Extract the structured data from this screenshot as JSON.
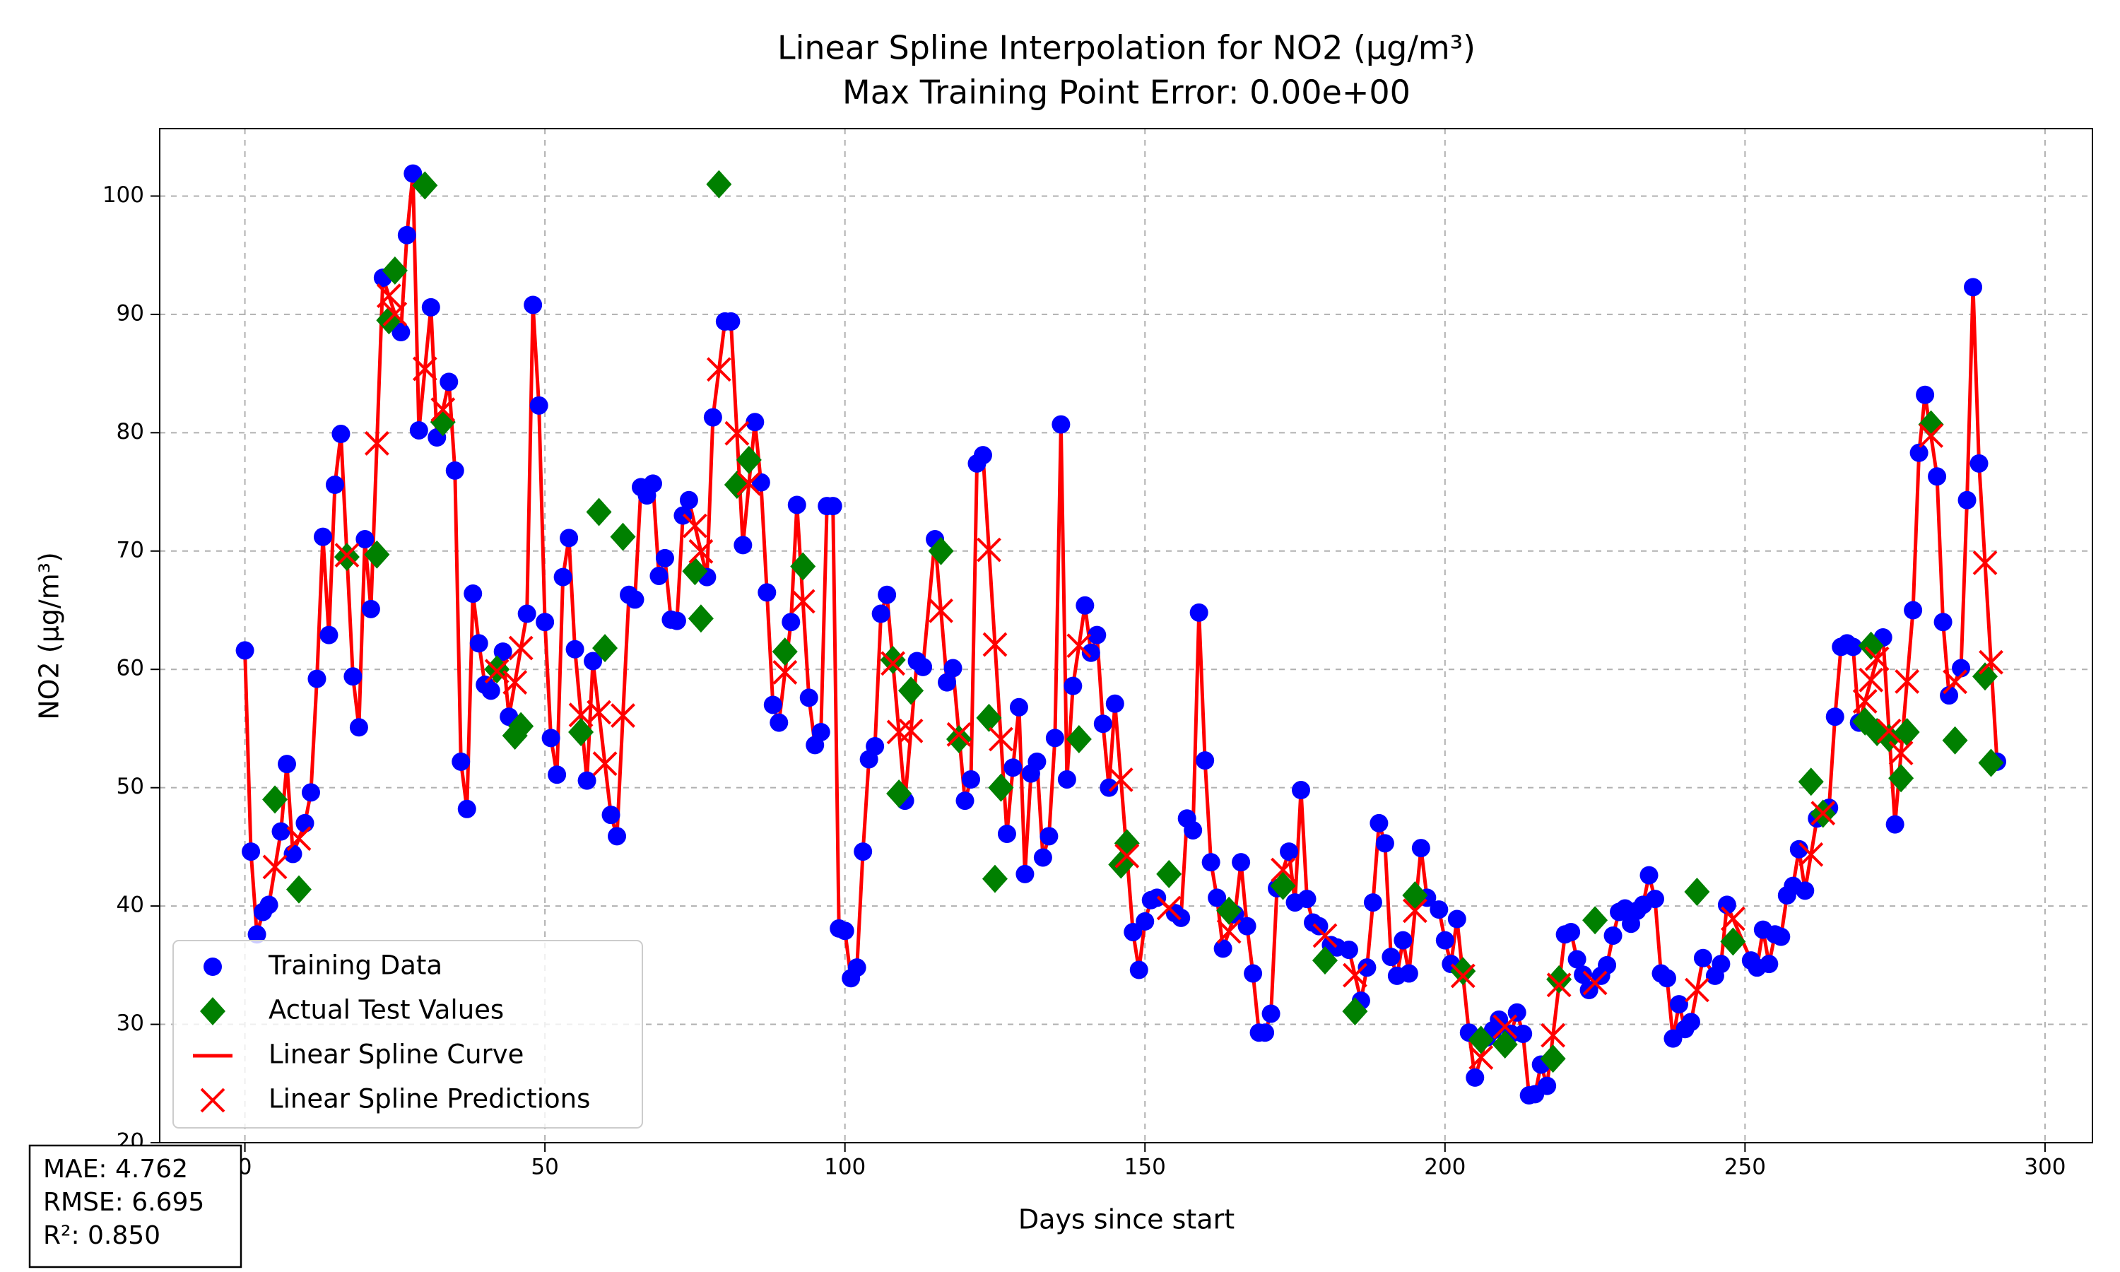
{
  "chart_data": {
    "type": "scatter",
    "title": "Linear Spline Interpolation for NO2 (µg/m³)",
    "subtitle": "Max Training Point Error: 0.00e+00",
    "x_label": "Days since start",
    "y_label": "NO2 (µg/m³)",
    "annotations": [
      "MAE: 4.762",
      "RMSE: 6.695",
      "R²: 0.850"
    ],
    "xlim": [
      -14.2,
      307.9
    ],
    "ylim": [
      20,
      105.7
    ],
    "xticks": [
      0,
      50,
      100,
      150,
      200,
      250,
      300
    ],
    "yticks": [
      20,
      30,
      40,
      50,
      60,
      70,
      80,
      90,
      100
    ],
    "grid": true,
    "legend": "lower left",
    "series": [
      {
        "name": "Training Data",
        "type": "scatter",
        "marker": "o",
        "color": "#0000ff",
        "x": [
          0,
          1,
          2,
          3,
          4,
          6,
          7,
          8,
          10,
          11,
          12,
          13,
          14,
          15,
          16,
          18,
          19,
          20,
          21,
          23,
          26,
          27,
          28,
          29,
          31,
          32,
          34,
          35,
          36,
          37,
          38,
          39,
          40,
          41,
          43,
          44,
          47,
          48,
          49,
          50,
          51,
          52,
          53,
          54,
          55,
          57,
          58,
          61,
          62,
          64,
          65,
          66,
          67,
          68,
          69,
          70,
          71,
          72,
          73,
          74,
          77,
          78,
          80,
          81,
          83,
          85,
          86,
          87,
          88,
          89,
          91,
          92,
          94,
          95,
          96,
          97,
          98,
          99,
          100,
          101,
          102,
          103,
          104,
          105,
          106,
          107,
          110,
          112,
          113,
          115,
          117,
          118,
          120,
          121,
          122,
          123,
          127,
          128,
          129,
          130,
          131,
          132,
          133,
          134,
          135,
          136,
          137,
          138,
          140,
          141,
          142,
          143,
          144,
          145,
          148,
          149,
          150,
          151,
          152,
          155,
          156,
          157,
          158,
          159,
          160,
          161,
          162,
          163,
          165,
          166,
          167,
          168,
          169,
          170,
          171,
          172,
          174,
          175,
          176,
          177,
          178,
          179,
          181,
          182,
          184,
          186,
          187,
          188,
          189,
          190,
          191,
          192,
          193,
          194,
          196,
          197,
          199,
          200,
          201,
          202,
          204,
          205,
          207,
          208,
          209,
          211,
          212,
          213,
          214,
          215,
          216,
          217,
          220,
          221,
          222,
          223,
          224,
          226,
          227,
          228,
          229,
          230,
          231,
          232,
          233,
          234,
          235,
          236,
          237,
          238,
          239,
          240,
          241,
          243,
          245,
          246,
          247,
          251,
          252,
          253,
          254,
          255,
          256,
          257,
          258,
          259,
          260,
          262,
          264,
          265,
          266,
          267,
          268,
          269,
          273,
          275,
          278,
          279,
          280,
          282,
          283,
          284,
          286,
          287,
          288,
          289,
          292
        ],
        "values": [
          61.6,
          44.6,
          37.6,
          39.5,
          40.1,
          46.3,
          52.0,
          44.4,
          47.0,
          49.6,
          59.2,
          71.2,
          62.9,
          75.6,
          79.9,
          59.4,
          55.1,
          71.0,
          65.1,
          93.1,
          88.5,
          96.7,
          101.9,
          80.2,
          90.6,
          79.6,
          84.3,
          76.8,
          52.2,
          48.2,
          66.4,
          62.2,
          58.7,
          58.2,
          61.5,
          56.0,
          64.7,
          90.8,
          82.3,
          64.0,
          54.2,
          51.1,
          67.8,
          71.1,
          61.7,
          50.6,
          60.7,
          47.7,
          45.9,
          66.3,
          65.9,
          75.4,
          74.7,
          75.7,
          67.9,
          69.4,
          64.2,
          64.1,
          73.0,
          74.3,
          67.8,
          81.3,
          89.4,
          89.4,
          70.5,
          80.9,
          75.8,
          66.5,
          57.0,
          55.5,
          64.0,
          73.9,
          57.6,
          53.6,
          54.7,
          73.8,
          73.8,
          38.1,
          37.9,
          33.9,
          34.8,
          44.6,
          52.4,
          53.5,
          64.7,
          66.3,
          48.9,
          60.7,
          60.2,
          71.0,
          58.9,
          60.1,
          48.9,
          50.7,
          77.4,
          78.1,
          46.1,
          51.7,
          56.8,
          42.7,
          51.2,
          52.2,
          44.1,
          45.9,
          54.2,
          80.7,
          50.7,
          58.6,
          65.4,
          61.4,
          62.9,
          55.4,
          50.0,
          57.1,
          37.8,
          34.6,
          38.7,
          40.5,
          40.7,
          39.4,
          39.0,
          47.4,
          46.4,
          64.8,
          52.3,
          43.7,
          40.7,
          36.4,
          39.3,
          43.7,
          38.3,
          34.3,
          29.3,
          29.3,
          30.9,
          41.5,
          44.6,
          40.3,
          49.8,
          40.6,
          38.6,
          38.3,
          36.7,
          36.5,
          36.3,
          32.0,
          34.8,
          40.3,
          47.0,
          45.3,
          35.7,
          34.1,
          37.1,
          34.3,
          44.9,
          40.7,
          39.7,
          37.1,
          35.1,
          38.9,
          29.3,
          25.5,
          28.9,
          29.5,
          30.4,
          29.2,
          31.0,
          29.2,
          24.0,
          24.1,
          26.6,
          24.8,
          37.6,
          37.8,
          35.5,
          34.2,
          32.9,
          34.1,
          35.0,
          37.5,
          39.5,
          39.8,
          38.5,
          39.6,
          40.1,
          42.6,
          40.6,
          34.3,
          33.9,
          28.8,
          31.7,
          29.6,
          30.2,
          35.6,
          34.1,
          35.1,
          40.1,
          35.4,
          34.8,
          38.0,
          35.1,
          37.6,
          37.4,
          40.9,
          41.7,
          44.8,
          41.3,
          47.4,
          48.3,
          56.0,
          61.9,
          62.2,
          61.9,
          55.5,
          62.7,
          46.9,
          65.0,
          78.3,
          83.2,
          76.3,
          64.0,
          57.8,
          60.1,
          74.3,
          92.3,
          77.4,
          52.2
        ]
      },
      {
        "name": "Actual Test Values",
        "type": "scatter",
        "marker": "D",
        "color": "#008000",
        "x": [
          5,
          9,
          17,
          22,
          24,
          25,
          30,
          33,
          42,
          45,
          46,
          56,
          59,
          60,
          63,
          75,
          76,
          79,
          82,
          84,
          90,
          93,
          108,
          109,
          111,
          116,
          119,
          124,
          125,
          126,
          139,
          146,
          147,
          154,
          164,
          173,
          180,
          185,
          195,
          203,
          206,
          210,
          218,
          219,
          225,
          242,
          248,
          261,
          263,
          270,
          271,
          272,
          274,
          276,
          277,
          281,
          285,
          290,
          291
        ],
        "values": [
          49.0,
          41.4,
          69.5,
          69.7,
          89.5,
          93.7,
          100.9,
          80.9,
          60.0,
          54.4,
          55.2,
          54.7,
          73.3,
          61.8,
          71.2,
          68.3,
          64.3,
          101.0,
          75.6,
          77.7,
          61.5,
          68.7,
          60.8,
          49.5,
          58.2,
          70.0,
          54.1,
          55.9,
          42.3,
          50.0,
          54.1,
          43.5,
          45.3,
          42.7,
          39.6,
          41.7,
          35.4,
          31.1,
          40.9,
          34.5,
          28.7,
          28.3,
          27.1,
          33.8,
          38.8,
          41.2,
          37.0,
          50.5,
          47.8,
          55.6,
          62.0,
          54.7,
          54.2,
          50.8,
          54.7,
          80.7,
          54.0,
          59.4,
          52.1
        ]
      },
      {
        "name": "Linear Spline Curve",
        "type": "line",
        "color": "#ff0000",
        "x": [
          0,
          1,
          2,
          3,
          4,
          6,
          7,
          8,
          10,
          11,
          12,
          13,
          14,
          15,
          16,
          18,
          19,
          20,
          21,
          23,
          26,
          27,
          28,
          29,
          31,
          32,
          34,
          35,
          36,
          37,
          38,
          39,
          40,
          41,
          43,
          44,
          47,
          48,
          49,
          50,
          51,
          52,
          53,
          54,
          55,
          57,
          58,
          61,
          62,
          64,
          65,
          66,
          67,
          68,
          69,
          70,
          71,
          72,
          73,
          74,
          77,
          78,
          80,
          81,
          83,
          85,
          86,
          87,
          88,
          89,
          91,
          92,
          94,
          95,
          96,
          97,
          98,
          99,
          100,
          101,
          102,
          103,
          104,
          105,
          106,
          107,
          110,
          112,
          113,
          115,
          117,
          118,
          120,
          121,
          122,
          123,
          127,
          128,
          129,
          130,
          131,
          132,
          133,
          134,
          135,
          136,
          137,
          138,
          140,
          141,
          142,
          143,
          144,
          145,
          148,
          149,
          150,
          151,
          152,
          155,
          156,
          157,
          158,
          159,
          160,
          161,
          162,
          163,
          165,
          166,
          167,
          168,
          169,
          170,
          171,
          172,
          174,
          175,
          176,
          177,
          178,
          179,
          181,
          182,
          184,
          186,
          187,
          188,
          189,
          190,
          191,
          192,
          193,
          194,
          196,
          197,
          199,
          200,
          201,
          202,
          204,
          205,
          207,
          208,
          209,
          211,
          212,
          213,
          214,
          215,
          216,
          217,
          220,
          221,
          222,
          223,
          224,
          226,
          227,
          228,
          229,
          230,
          231,
          232,
          233,
          234,
          235,
          236,
          237,
          238,
          239,
          240,
          241,
          243,
          245,
          246,
          247,
          251,
          252,
          253,
          254,
          255,
          256,
          257,
          258,
          259,
          260,
          262,
          264,
          265,
          266,
          267,
          268,
          269,
          273,
          275,
          278,
          279,
          280,
          282,
          283,
          284,
          286,
          287,
          288,
          289,
          292
        ],
        "values": [
          61.6,
          44.6,
          37.6,
          39.5,
          40.1,
          46.3,
          52.0,
          44.4,
          47.0,
          49.6,
          59.2,
          71.2,
          62.9,
          75.6,
          79.9,
          59.4,
          55.1,
          71.0,
          65.1,
          93.1,
          88.5,
          96.7,
          101.9,
          80.2,
          90.6,
          79.6,
          84.3,
          76.8,
          52.2,
          48.2,
          66.4,
          62.2,
          58.7,
          58.2,
          61.5,
          56.0,
          64.7,
          90.8,
          82.3,
          64.0,
          54.2,
          51.1,
          67.8,
          71.1,
          61.7,
          50.6,
          60.7,
          47.7,
          45.9,
          66.3,
          65.9,
          75.4,
          74.7,
          75.7,
          67.9,
          69.4,
          64.2,
          64.1,
          73.0,
          74.3,
          67.8,
          81.3,
          89.4,
          89.4,
          70.5,
          80.9,
          75.8,
          66.5,
          57.0,
          55.5,
          64.0,
          73.9,
          57.6,
          53.6,
          54.7,
          73.8,
          73.8,
          38.1,
          37.9,
          33.9,
          34.8,
          44.6,
          52.4,
          53.5,
          64.7,
          66.3,
          48.9,
          60.7,
          60.2,
          71.0,
          58.9,
          60.1,
          48.9,
          50.7,
          77.4,
          78.1,
          46.1,
          51.7,
          56.8,
          42.7,
          51.2,
          52.2,
          44.1,
          45.9,
          54.2,
          80.7,
          50.7,
          58.6,
          65.4,
          61.4,
          62.9,
          55.4,
          50.0,
          57.1,
          37.8,
          34.6,
          38.7,
          40.5,
          40.7,
          39.4,
          39.0,
          47.4,
          46.4,
          64.8,
          52.3,
          43.7,
          40.7,
          36.4,
          39.3,
          43.7,
          38.3,
          34.3,
          29.3,
          29.3,
          30.9,
          41.5,
          44.6,
          40.3,
          49.8,
          40.6,
          38.6,
          38.3,
          36.7,
          36.5,
          36.3,
          32.0,
          34.8,
          40.3,
          47.0,
          45.3,
          35.7,
          34.1,
          37.1,
          34.3,
          44.9,
          40.7,
          39.7,
          37.1,
          35.1,
          38.9,
          29.3,
          25.5,
          28.9,
          29.5,
          30.4,
          29.2,
          31.0,
          29.2,
          24.0,
          24.1,
          26.6,
          24.8,
          37.6,
          37.8,
          35.5,
          34.2,
          32.9,
          34.1,
          35.0,
          37.5,
          39.5,
          39.8,
          38.5,
          39.6,
          40.1,
          42.6,
          40.6,
          34.3,
          33.9,
          28.8,
          31.7,
          29.6,
          30.2,
          35.6,
          34.1,
          35.1,
          40.1,
          35.4,
          34.8,
          38.0,
          35.1,
          37.6,
          37.4,
          40.9,
          41.7,
          44.8,
          41.3,
          47.4,
          48.3,
          56.0,
          61.9,
          62.2,
          61.9,
          55.5,
          62.7,
          46.9,
          65.0,
          78.3,
          83.2,
          76.3,
          64.0,
          57.8,
          60.1,
          74.3,
          92.3,
          77.4,
          52.2
        ]
      },
      {
        "name": "Linear Spline Predictions",
        "type": "scatter",
        "marker": "x",
        "color": "#ff0000",
        "x": [
          5,
          9,
          17,
          22,
          24,
          25,
          30,
          33,
          42,
          45,
          46,
          56,
          59,
          60,
          63,
          75,
          76,
          79,
          82,
          84,
          90,
          93,
          108,
          109,
          111,
          116,
          119,
          124,
          125,
          126,
          139,
          146,
          147,
          154,
          164,
          173,
          180,
          185,
          195,
          203,
          206,
          210,
          218,
          219,
          225,
          242,
          248,
          261,
          263,
          270,
          271,
          272,
          274,
          276,
          277,
          281,
          285,
          290,
          291
        ],
        "values": [
          43.3,
          45.7,
          69.65,
          79.1,
          91.57,
          90.03,
          85.4,
          81.95,
          59.85,
          58.9,
          61.8,
          56.15,
          56.37,
          52.03,
          56.1,
          72.13,
          69.97,
          85.35,
          79.95,
          75.7,
          59.75,
          65.75,
          60.5,
          54.7,
          54.8,
          64.95,
          54.5,
          70.1,
          62.1,
          54.1,
          62.0,
          50.67,
          44.23,
          39.83,
          37.85,
          43.05,
          37.5,
          34.15,
          39.6,
          34.1,
          27.2,
          29.8,
          29.07,
          33.33,
          33.5,
          32.9,
          38.93,
          44.35,
          47.85,
          57.3,
          59.1,
          60.9,
          54.8,
          52.93,
          58.97,
          79.75,
          58.95,
          69.0,
          60.6
        ]
      }
    ]
  }
}
